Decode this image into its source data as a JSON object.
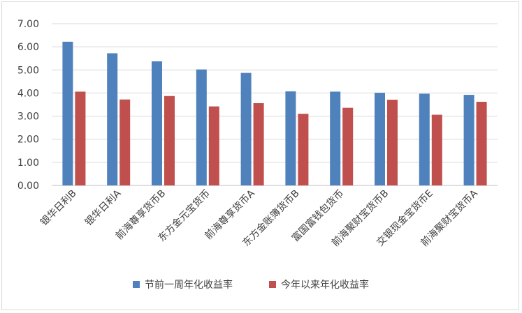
{
  "chart_data": {
    "type": "bar",
    "categories": [
      "银华日利B",
      "银华日利A",
      "前海尊享货币B",
      "东方金元宝货币",
      "前海尊享货币A",
      "东方金账簿货币B",
      "富国富钱包货币",
      "前海聚财宝货币B",
      "交银现金宝货币E",
      "前海聚财宝货币A"
    ],
    "series": [
      {
        "name": "节前一周年化收益率",
        "color": "#4f81bd",
        "values": [
          6.22,
          5.72,
          5.37,
          5.02,
          4.87,
          4.07,
          4.06,
          4.01,
          3.97,
          3.92
        ]
      },
      {
        "name": "今年以来年化收益率",
        "color": "#c0504d",
        "values": [
          4.06,
          3.72,
          3.87,
          3.42,
          3.56,
          3.1,
          3.36,
          3.71,
          3.06,
          3.62
        ]
      }
    ],
    "ylim": [
      0,
      7
    ],
    "yticks": [
      "0.00",
      "1.00",
      "2.00",
      "3.00",
      "4.00",
      "5.00",
      "6.00",
      "7.00"
    ],
    "grid": true,
    "legend_position": "bottom-center",
    "title": "",
    "xlabel": "",
    "ylabel": ""
  }
}
